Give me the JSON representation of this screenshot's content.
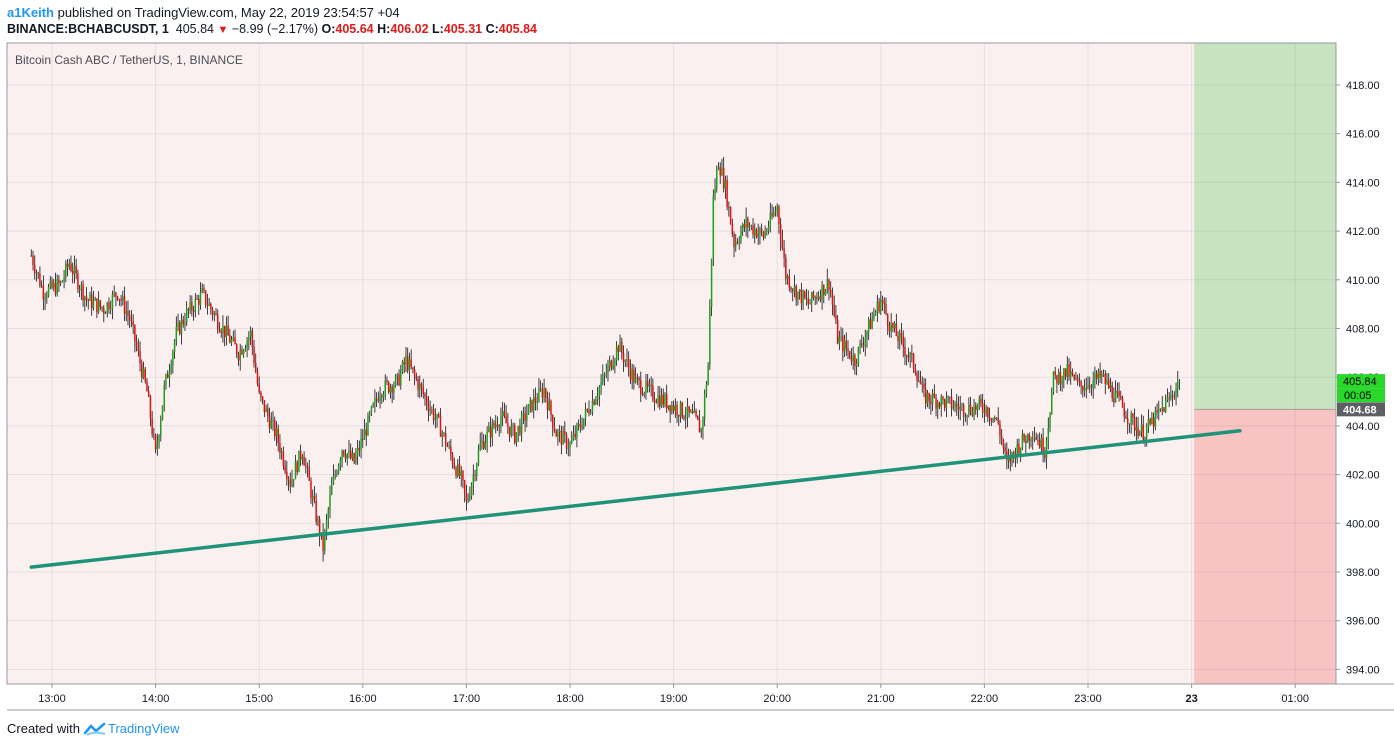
{
  "header": {
    "user": "a1Keith",
    "published_text": "published on TradingView.com, May 22, 2019 23:54:57 +04",
    "symbol": "BINANCE:BCHABCUSDT, 1",
    "last": "405.84",
    "change": "−8.99 (−2.17%)",
    "o_label": "O:",
    "o_val": "405.64",
    "h_label": "H:",
    "h_val": "406.02",
    "l_label": "L:",
    "l_val": "405.31",
    "c_label": "C:",
    "c_val": "405.84"
  },
  "footer": {
    "created_with": "Created with",
    "brand": "TradingView"
  },
  "chart_data": {
    "type": "candlestick",
    "title": "Bitcoin Cash ABC / TetherUS, 1, BINANCE",
    "x_tick_labels": [
      "13:00",
      "14:00",
      "15:00",
      "16:00",
      "17:00",
      "18:00",
      "19:00",
      "20:00",
      "21:00",
      "22:00",
      "23:00",
      "23",
      "01:00"
    ],
    "y_tick_labels": [
      "418.00",
      "416.00",
      "414.00",
      "412.00",
      "410.00",
      "408.00",
      "406.00",
      "404.00",
      "402.00",
      "400.00",
      "398.00",
      "396.00",
      "394.00"
    ],
    "ylim": [
      393.3,
      419.8
    ],
    "price_label": "405.84",
    "countdown_label": "00:05",
    "entry_label": "404.68",
    "entry_price": 404.68,
    "target_zone": {
      "from": 404.68,
      "to": 419.8
    },
    "stop_zone": {
      "from": 393.3,
      "to": 404.68
    },
    "trendline": {
      "start": {
        "time": "12:48",
        "price": 398.2
      },
      "end": {
        "time": "00:28",
        "price": 403.8
      }
    },
    "price_path_knots": [
      [
        "12:48",
        411.0
      ],
      [
        "12:55",
        409.5
      ],
      [
        "13:05",
        409.8
      ],
      [
        "13:10",
        410.7
      ],
      [
        "13:20",
        409.2
      ],
      [
        "13:30",
        408.8
      ],
      [
        "13:38",
        409.5
      ],
      [
        "13:45",
        408.4
      ],
      [
        "13:55",
        405.4
      ],
      [
        "14:00",
        402.8
      ],
      [
        "14:05",
        405.5
      ],
      [
        "14:12",
        407.8
      ],
      [
        "14:18",
        408.6
      ],
      [
        "14:27",
        409.4
      ],
      [
        "14:38",
        408.1
      ],
      [
        "14:48",
        407.0
      ],
      [
        "14:55",
        407.8
      ],
      [
        "15:00",
        405.2
      ],
      [
        "15:10",
        403.6
      ],
      [
        "15:18",
        401.7
      ],
      [
        "15:25",
        403.0
      ],
      [
        "15:32",
        400.6
      ],
      [
        "15:37",
        399.0
      ],
      [
        "15:42",
        401.5
      ],
      [
        "15:48",
        403.1
      ],
      [
        "15:55",
        402.5
      ],
      [
        "16:03",
        404.1
      ],
      [
        "16:10",
        405.5
      ],
      [
        "16:20",
        405.8
      ],
      [
        "16:25",
        406.7
      ],
      [
        "16:35",
        405.3
      ],
      [
        "16:45",
        403.9
      ],
      [
        "16:52",
        402.6
      ],
      [
        "16:57",
        401.8
      ],
      [
        "17:00",
        400.8
      ],
      [
        "17:08",
        403.2
      ],
      [
        "17:20",
        404.4
      ],
      [
        "17:28",
        403.6
      ],
      [
        "17:38",
        404.9
      ],
      [
        "17:45",
        405.5
      ],
      [
        "17:52",
        403.7
      ],
      [
        "18:00",
        403.2
      ],
      [
        "18:10",
        404.6
      ],
      [
        "18:20",
        406.0
      ],
      [
        "18:28",
        407.3
      ],
      [
        "18:38",
        405.8
      ],
      [
        "18:48",
        405.3
      ],
      [
        "19:00",
        404.8
      ],
      [
        "19:12",
        404.3
      ],
      [
        "19:16",
        403.8
      ],
      [
        "19:20",
        406.5
      ],
      [
        "19:23",
        413.3
      ],
      [
        "19:26",
        414.9
      ],
      [
        "19:30",
        413.8
      ],
      [
        "19:35",
        411.5
      ],
      [
        "19:42",
        412.3
      ],
      [
        "19:52",
        411.8
      ],
      [
        "20:00",
        413.0
      ],
      [
        "20:05",
        410.2
      ],
      [
        "20:10",
        409.6
      ],
      [
        "20:18",
        409.0
      ],
      [
        "20:30",
        409.9
      ],
      [
        "20:35",
        407.6
      ],
      [
        "20:45",
        406.7
      ],
      [
        "20:52",
        407.9
      ],
      [
        "21:00",
        409.2
      ],
      [
        "21:05",
        408.2
      ],
      [
        "21:12",
        407.4
      ],
      [
        "21:20",
        406.4
      ],
      [
        "21:25",
        405.2
      ],
      [
        "21:35",
        405.0
      ],
      [
        "21:48",
        404.7
      ],
      [
        "22:00",
        404.8
      ],
      [
        "22:08",
        404.1
      ],
      [
        "22:13",
        402.4
      ],
      [
        "22:20",
        403.2
      ],
      [
        "22:28",
        403.8
      ],
      [
        "22:35",
        403.0
      ],
      [
        "22:40",
        405.9
      ],
      [
        "22:48",
        406.2
      ],
      [
        "22:55",
        405.6
      ],
      [
        "23:08",
        406.0
      ],
      [
        "23:16",
        405.2
      ],
      [
        "23:25",
        404.2
      ],
      [
        "23:32",
        403.7
      ],
      [
        "23:40",
        404.4
      ],
      [
        "23:48",
        405.2
      ],
      [
        "23:53",
        405.84
      ]
    ]
  }
}
